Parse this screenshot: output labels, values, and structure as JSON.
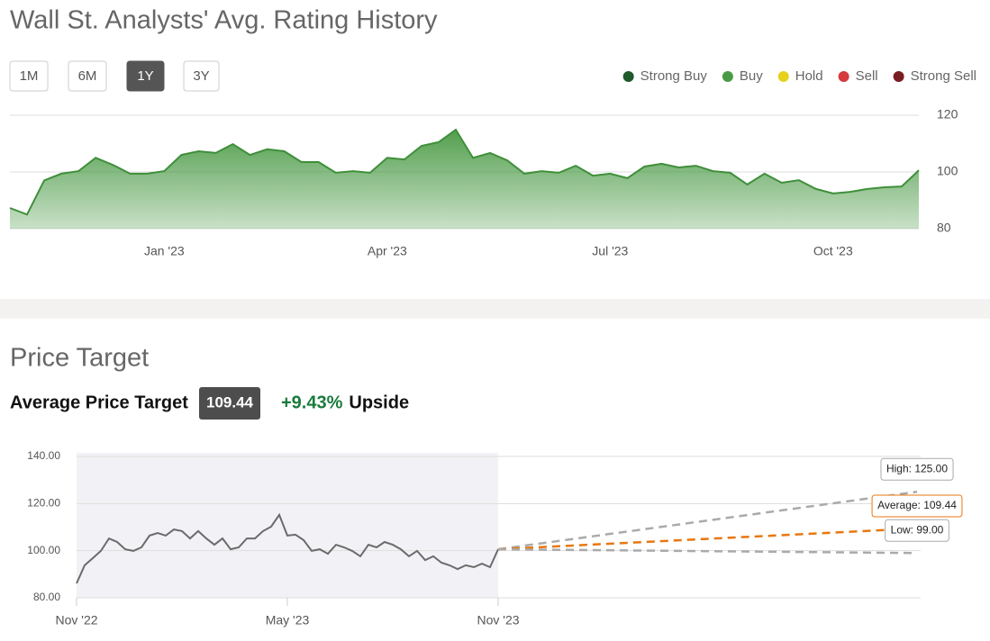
{
  "header": {
    "title": "Wall St. Analysts' Avg. Rating History",
    "ranges": [
      "1M",
      "6M",
      "1Y",
      "3Y"
    ],
    "active_range": 2
  },
  "price_target": {
    "title": "Price Target",
    "label": "Average Price Target",
    "value": "109.44",
    "upside": "+9.43%",
    "upside_label": "Upside"
  },
  "chart_data": [
    {
      "type": "area",
      "legend": [
        {
          "name": "Strong Buy",
          "color": "#1e5a2a"
        },
        {
          "name": "Buy",
          "color": "#4a9a45"
        },
        {
          "name": "Hold",
          "color": "#e6d21c"
        },
        {
          "name": "Sell",
          "color": "#d63a3e"
        },
        {
          "name": "Strong Sell",
          "color": "#7a1d22"
        }
      ],
      "categories": [
        null,
        null,
        null,
        null,
        null,
        null,
        null,
        null,
        null,
        "Jan '23",
        null,
        null,
        null,
        null,
        null,
        null,
        null,
        null,
        null,
        null,
        null,
        null,
        "Apr '23",
        null,
        null,
        null,
        null,
        null,
        null,
        null,
        null,
        null,
        null,
        null,
        null,
        "Jul '23",
        null,
        null,
        null,
        null,
        null,
        null,
        null,
        null,
        null,
        null,
        null,
        null,
        "Oct '23",
        null,
        null,
        null,
        null,
        null
      ],
      "values": [
        87.3,
        85,
        97,
        99.4,
        100.3,
        105,
        102.5,
        99.4,
        99.4,
        100.3,
        106,
        107.3,
        106.7,
        109.8,
        106,
        108,
        107.3,
        103.5,
        103.5,
        99.7,
        100.3,
        99.7,
        105,
        104.4,
        109.2,
        110.5,
        114.9,
        105,
        106.7,
        104.1,
        99.4,
        100.3,
        99.7,
        102.2,
        98.7,
        99.4,
        97.8,
        101.9,
        102.9,
        101.6,
        102.2,
        100.3,
        99.7,
        95.6,
        99.4,
        96.2,
        97.1,
        94,
        92.4,
        93,
        94,
        94.6,
        94.9,
        100.6
      ],
      "color": "#3f8f3a",
      "ylim": [
        80,
        120
      ],
      "yticks": [
        80,
        100,
        120
      ],
      "grid": true
    },
    {
      "type": "line",
      "categories": [
        "Nov '22",
        null,
        null,
        null,
        null,
        null,
        null,
        null,
        null,
        null,
        null,
        null,
        null,
        null,
        null,
        null,
        null,
        null,
        null,
        null,
        null,
        null,
        null,
        null,
        null,
        null,
        "May '23",
        null,
        null,
        null,
        null,
        null,
        null,
        null,
        null,
        null,
        null,
        null,
        null,
        null,
        null,
        null,
        null,
        null,
        null,
        null,
        null,
        null,
        null,
        null,
        null,
        null,
        "Nov '23"
      ],
      "values": [
        86.1,
        93.8,
        96.8,
        99.9,
        105.2,
        103.7,
        100.6,
        99.9,
        101.4,
        106.4,
        107.5,
        106.4,
        109,
        108.3,
        105.2,
        108.3,
        105.2,
        102.5,
        105.2,
        100.6,
        101.4,
        105.2,
        105.2,
        108.3,
        110.2,
        115.2,
        106.4,
        106.8,
        104.5,
        99.9,
        100.6,
        98.7,
        102.5,
        101.4,
        99.9,
        97.6,
        102.5,
        101.4,
        103.7,
        102.5,
        100.6,
        97.6,
        99.9,
        96,
        97.6,
        94.9,
        93.8,
        92.2,
        93.8,
        93,
        94.5,
        93,
        100.6
      ],
      "color": "#6b6b6b",
      "targets": [
        {
          "value": 125,
          "value_label": "High: 125.00",
          "color": "#aaaaaa"
        },
        {
          "value": 109.44,
          "value_label": "Average: 109.44",
          "color": "#e8770f"
        },
        {
          "value": 99,
          "value_label": "Low: 99.00",
          "color": "#aaaaaa"
        }
      ],
      "ylim": [
        80,
        140
      ],
      "yticks": [
        {
          "value": 80,
          "label": "80.00"
        },
        {
          "value": 100,
          "label": "100.00"
        },
        {
          "value": 120,
          "label": "120.00"
        },
        {
          "value": 140,
          "label": "140.00"
        }
      ],
      "grid": true
    }
  ]
}
